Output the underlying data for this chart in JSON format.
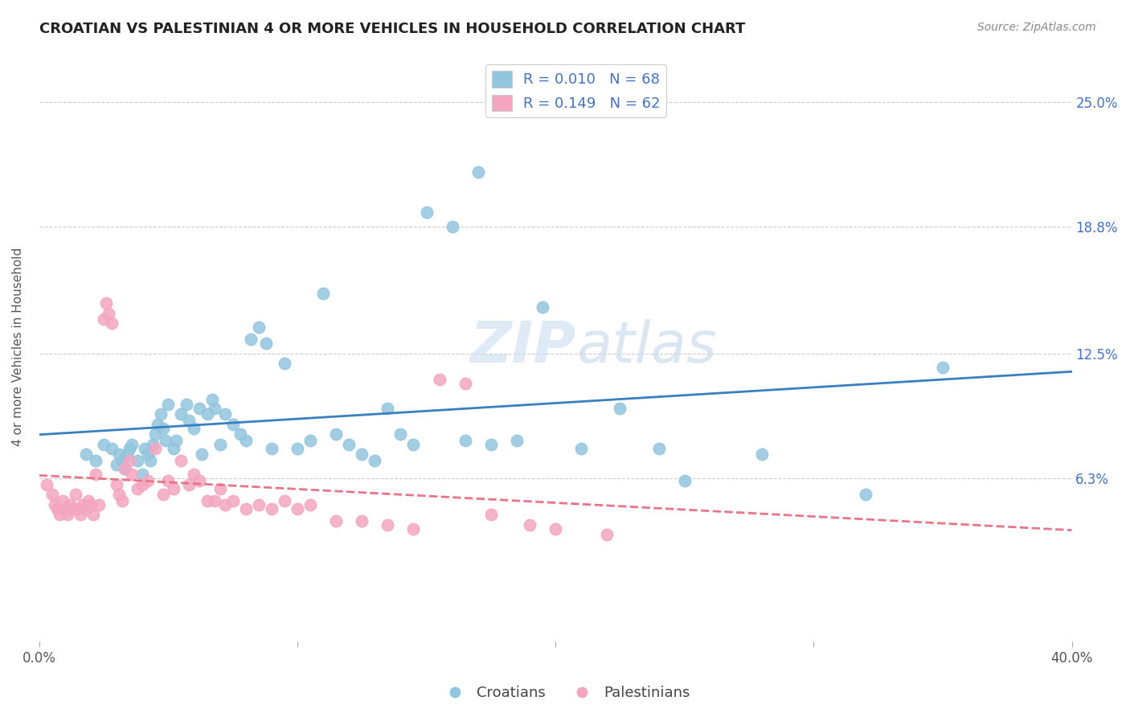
{
  "title": "CROATIAN VS PALESTINIAN 4 OR MORE VEHICLES IN HOUSEHOLD CORRELATION CHART",
  "source": "Source: ZipAtlas.com",
  "ylabel": "4 or more Vehicles in Household",
  "ytick_labels": [
    "25.0%",
    "18.8%",
    "12.5%",
    "6.3%"
  ],
  "ytick_values": [
    0.25,
    0.188,
    0.125,
    0.063
  ],
  "xlim": [
    0.0,
    0.4
  ],
  "ylim": [
    -0.018,
    0.275
  ],
  "croatian_color": "#92c5de",
  "palestinian_color": "#f4a6c0",
  "croatian_line_color": "#3a7fc1",
  "palestinian_line_color": "#e8748a",
  "watermark": "ZIPatlas",
  "croatian_x": [
    0.018,
    0.022,
    0.025,
    0.028,
    0.03,
    0.031,
    0.032,
    0.033,
    0.034,
    0.035,
    0.036,
    0.038,
    0.04,
    0.041,
    0.042,
    0.043,
    0.044,
    0.045,
    0.046,
    0.047,
    0.048,
    0.049,
    0.05,
    0.052,
    0.053,
    0.055,
    0.057,
    0.058,
    0.06,
    0.062,
    0.063,
    0.065,
    0.067,
    0.068,
    0.07,
    0.072,
    0.075,
    0.078,
    0.08,
    0.082,
    0.085,
    0.088,
    0.09,
    0.095,
    0.1,
    0.105,
    0.11,
    0.115,
    0.12,
    0.125,
    0.13,
    0.135,
    0.14,
    0.145,
    0.15,
    0.16,
    0.165,
    0.17,
    0.175,
    0.185,
    0.195,
    0.21,
    0.225,
    0.24,
    0.25,
    0.28,
    0.32,
    0.35
  ],
  "croatian_y": [
    0.075,
    0.072,
    0.08,
    0.078,
    0.07,
    0.075,
    0.072,
    0.068,
    0.075,
    0.078,
    0.08,
    0.072,
    0.065,
    0.078,
    0.075,
    0.072,
    0.08,
    0.085,
    0.09,
    0.095,
    0.088,
    0.082,
    0.1,
    0.078,
    0.082,
    0.095,
    0.1,
    0.092,
    0.088,
    0.098,
    0.075,
    0.095,
    0.102,
    0.098,
    0.08,
    0.095,
    0.09,
    0.085,
    0.082,
    0.132,
    0.138,
    0.13,
    0.078,
    0.12,
    0.078,
    0.082,
    0.155,
    0.085,
    0.08,
    0.075,
    0.072,
    0.098,
    0.085,
    0.08,
    0.195,
    0.188,
    0.082,
    0.215,
    0.08,
    0.082,
    0.148,
    0.078,
    0.098,
    0.078,
    0.062,
    0.075,
    0.055,
    0.118
  ],
  "palestinian_x": [
    0.003,
    0.005,
    0.006,
    0.007,
    0.008,
    0.009,
    0.01,
    0.011,
    0.012,
    0.013,
    0.014,
    0.015,
    0.016,
    0.017,
    0.018,
    0.019,
    0.02,
    0.021,
    0.022,
    0.023,
    0.025,
    0.026,
    0.027,
    0.028,
    0.03,
    0.031,
    0.032,
    0.033,
    0.035,
    0.036,
    0.038,
    0.04,
    0.042,
    0.045,
    0.048,
    0.05,
    0.052,
    0.055,
    0.058,
    0.06,
    0.062,
    0.065,
    0.068,
    0.07,
    0.072,
    0.075,
    0.08,
    0.085,
    0.09,
    0.095,
    0.1,
    0.105,
    0.115,
    0.125,
    0.135,
    0.145,
    0.155,
    0.165,
    0.175,
    0.19,
    0.2,
    0.22
  ],
  "palestinian_y": [
    0.06,
    0.055,
    0.05,
    0.048,
    0.045,
    0.052,
    0.048,
    0.045,
    0.05,
    0.048,
    0.055,
    0.048,
    0.045,
    0.05,
    0.048,
    0.052,
    0.05,
    0.045,
    0.065,
    0.05,
    0.142,
    0.15,
    0.145,
    0.14,
    0.06,
    0.055,
    0.052,
    0.068,
    0.072,
    0.065,
    0.058,
    0.06,
    0.062,
    0.078,
    0.055,
    0.062,
    0.058,
    0.072,
    0.06,
    0.065,
    0.062,
    0.052,
    0.052,
    0.058,
    0.05,
    0.052,
    0.048,
    0.05,
    0.048,
    0.052,
    0.048,
    0.05,
    0.042,
    0.042,
    0.04,
    0.038,
    0.112,
    0.11,
    0.045,
    0.04,
    0.038,
    0.035
  ]
}
